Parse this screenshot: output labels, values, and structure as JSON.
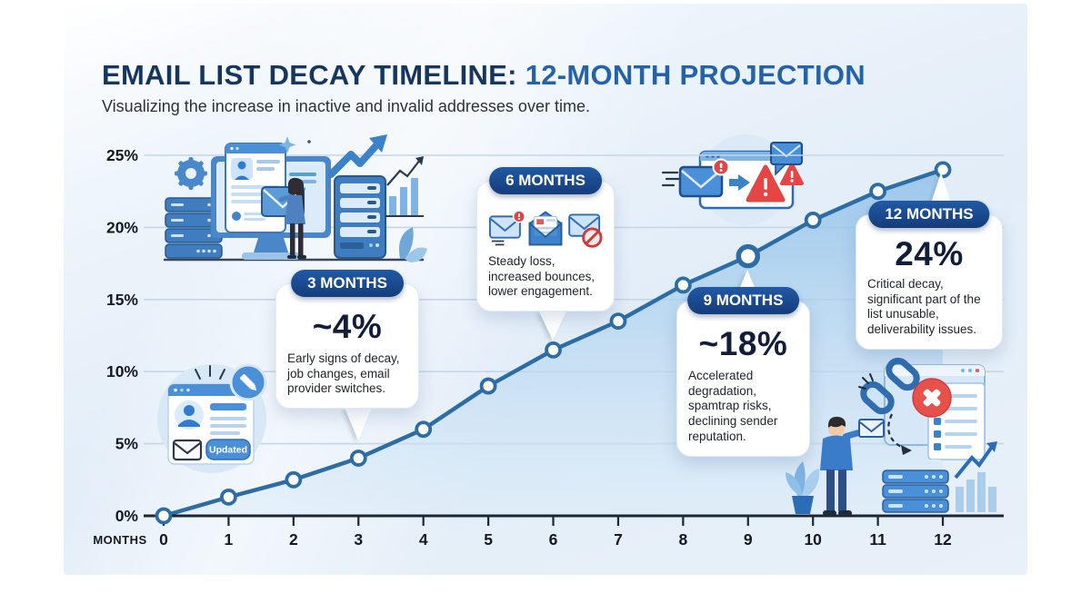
{
  "header": {
    "title_main": "EMAIL LIST DECAY TIMELINE:",
    "title_accent": " 12-MONTH PROJECTION",
    "subtitle": "Visualizing the increase in inactive and invalid addresses over time."
  },
  "chart_data": {
    "type": "line",
    "title": "Email List Decay Timeline: 12-Month Projection",
    "xlabel": "MONTHS",
    "ylabel": "",
    "x": [
      0,
      1,
      2,
      3,
      4,
      5,
      6,
      7,
      8,
      9,
      10,
      11,
      12
    ],
    "values": [
      0,
      1.3,
      2.5,
      4,
      6,
      9,
      11.5,
      13.5,
      16,
      18,
      20.5,
      22.5,
      24
    ],
    "ylim": [
      0,
      25
    ],
    "yticks": [
      0,
      5,
      10,
      15,
      20,
      25
    ],
    "ytick_labels": [
      "0%",
      "5%",
      "10%",
      "15%",
      "20%",
      "25%"
    ],
    "grid": true,
    "legend": null,
    "line_color": "#2e6da4",
    "marker_fill": "#ffffff",
    "area_top_color": "#8fc0e8",
    "area_bottom_color": "#d8eaf8",
    "axis_color": "#1c2733",
    "grid_color": "#c6d6e6",
    "highlighted_point_month": 9
  },
  "callouts": [
    {
      "label": "3 MONTHS",
      "value": "~4%",
      "description": "Early signs of decay, job changes, email provider switches."
    },
    {
      "label": "6 MONTHS",
      "value": "",
      "description": "Steady loss, increased bounces, lower engagement."
    },
    {
      "label": "9 MONTHS",
      "value": "~18%",
      "description": "Accelerated degradation, spamtrap risks, declining sender reputation."
    },
    {
      "label": "12 MONTHS",
      "value": "24%",
      "description": "Critical decay, significant part of the list unusable, deliverability issues."
    }
  ],
  "illustrations": {
    "updated_badge": "Updated"
  },
  "colors": {
    "title_main": "#16365f",
    "title_accent": "#2563a8",
    "pill_bg": "#1b4c93",
    "warning_red": "#e64545"
  }
}
